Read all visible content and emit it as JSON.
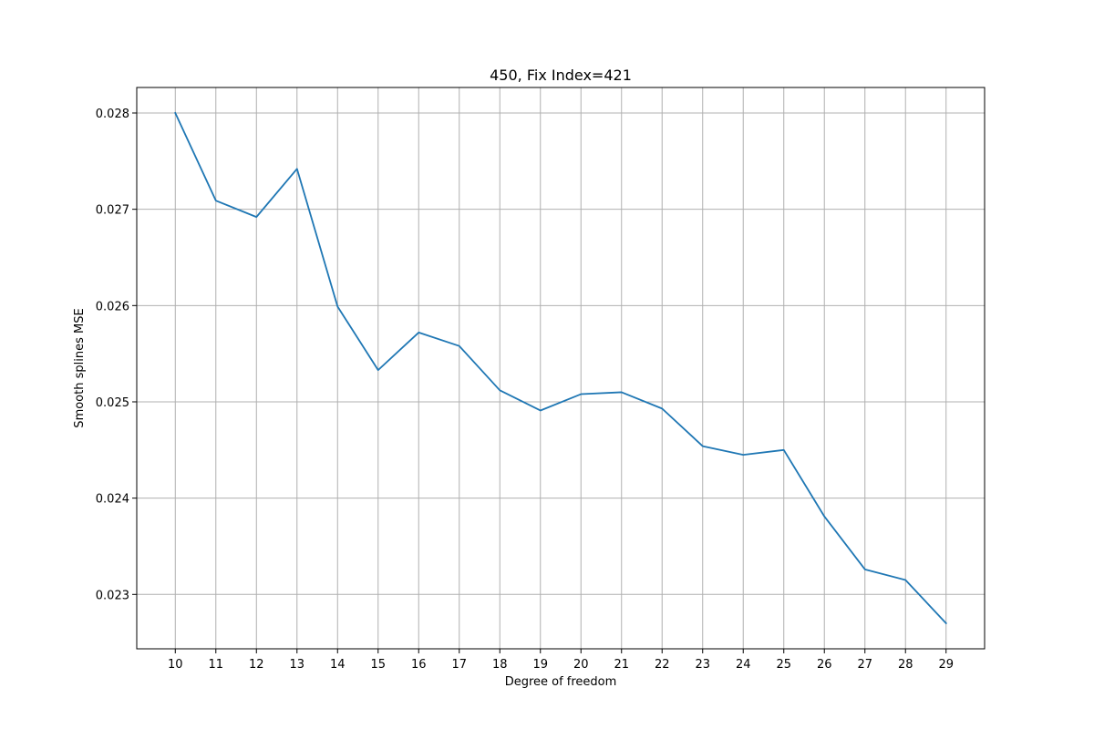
{
  "chart_data": {
    "type": "line",
    "title": "450, Fix Index=421",
    "xlabel": "Degree of freedom",
    "ylabel": "Smooth splines MSE",
    "x": [
      10,
      11,
      12,
      13,
      14,
      15,
      16,
      17,
      18,
      19,
      20,
      21,
      22,
      23,
      24,
      25,
      26,
      27,
      28,
      29
    ],
    "series": [
      {
        "values": [
          0.028,
          0.02709,
          0.02692,
          0.02742,
          0.02599,
          0.02533,
          0.02572,
          0.02558,
          0.02512,
          0.02491,
          0.02508,
          0.0251,
          0.02493,
          0.02454,
          0.02445,
          0.0245,
          0.02381,
          0.02326,
          0.02315,
          0.0227
        ],
        "color": "#1f77b4"
      }
    ],
    "x_ticks": [
      "10",
      "11",
      "12",
      "13",
      "14",
      "15",
      "16",
      "17",
      "18",
      "19",
      "20",
      "21",
      "22",
      "23",
      "24",
      "25",
      "26",
      "27",
      "28",
      "29"
    ],
    "y_ticks": [
      0.023,
      0.024,
      0.025,
      0.026,
      0.027,
      0.028
    ],
    "y_tick_labels": [
      "0.023",
      "0.024",
      "0.025",
      "0.026",
      "0.027",
      "0.028"
    ],
    "xlim": [
      9.05,
      29.95
    ],
    "ylim": [
      0.022435,
      0.028265
    ],
    "grid": true
  }
}
